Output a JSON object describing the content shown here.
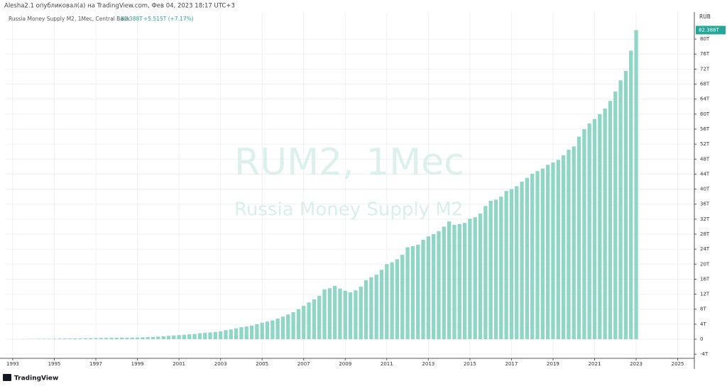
{
  "header": "Alesha2.1 опубликовал(а) на TradingView.com, Фев 04, 2023 18:17 UTC+3",
  "footer": "TradingView",
  "chart_data": {
    "type": "bar",
    "title": "Russia Money Supply M2, 1Мес, Central Bank",
    "last_value_label": "82.388T",
    "change_label": "+5.515T (+7.17%)",
    "watermark": "RUM2, 1Мес",
    "watermark_subtitle": "Russia Money Supply M2",
    "currency": "RUB",
    "color": "#8fd6c7",
    "x": [
      1993,
      1993.25,
      1993.5,
      1993.75,
      1994,
      1994.25,
      1994.5,
      1994.75,
      1995,
      1995.25,
      1995.5,
      1995.75,
      1996,
      1996.25,
      1996.5,
      1996.75,
      1997,
      1997.25,
      1997.5,
      1997.75,
      1998,
      1998.25,
      1998.5,
      1998.75,
      1999,
      1999.25,
      1999.5,
      1999.75,
      2000,
      2000.25,
      2000.5,
      2000.75,
      2001,
      2001.25,
      2001.5,
      2001.75,
      2002,
      2002.25,
      2002.5,
      2002.75,
      2003,
      2003.25,
      2003.5,
      2003.75,
      2004,
      2004.25,
      2004.5,
      2004.75,
      2005,
      2005.25,
      2005.5,
      2005.75,
      2006,
      2006.25,
      2006.5,
      2006.75,
      2007,
      2007.25,
      2007.5,
      2007.75,
      2008,
      2008.25,
      2008.5,
      2008.75,
      2009,
      2009.25,
      2009.5,
      2009.75,
      2010,
      2010.25,
      2010.5,
      2010.75,
      2011,
      2011.25,
      2011.5,
      2011.75,
      2012,
      2012.25,
      2012.5,
      2012.75,
      2013,
      2013.25,
      2013.5,
      2013.75,
      2014,
      2014.25,
      2014.5,
      2014.75,
      2015,
      2015.25,
      2015.5,
      2015.75,
      2016,
      2016.25,
      2016.5,
      2016.75,
      2017,
      2017.25,
      2017.5,
      2017.75,
      2018,
      2018.25,
      2018.5,
      2018.75,
      2019,
      2019.25,
      2019.5,
      2019.75,
      2020,
      2020.25,
      2020.5,
      2020.75,
      2021,
      2021.25,
      2021.5,
      2021.75,
      2022,
      2022.25,
      2022.5,
      2022.75,
      2023
    ],
    "values": [
      0.02,
      0.03,
      0.04,
      0.05,
      0.06,
      0.08,
      0.1,
      0.12,
      0.14,
      0.16,
      0.18,
      0.2,
      0.22,
      0.24,
      0.26,
      0.28,
      0.3,
      0.33,
      0.36,
      0.38,
      0.4,
      0.42,
      0.4,
      0.43,
      0.45,
      0.5,
      0.55,
      0.6,
      0.7,
      0.8,
      0.9,
      1.0,
      1.1,
      1.2,
      1.3,
      1.4,
      1.6,
      1.7,
      1.8,
      1.9,
      2.1,
      2.4,
      2.6,
      2.9,
      3.2,
      3.4,
      3.6,
      4.0,
      4.4,
      4.7,
      5.0,
      5.5,
      6.0,
      6.6,
      7.2,
      8.0,
      8.9,
      9.8,
      10.6,
      11.6,
      13.3,
      13.6,
      14.2,
      13.5,
      12.9,
      12.5,
      13.0,
      14.0,
      15.7,
      16.5,
      17.2,
      18.5,
      20.0,
      20.5,
      21.3,
      22.5,
      24.5,
      24.8,
      25.2,
      26.5,
      27.4,
      28.0,
      28.8,
      30.0,
      31.4,
      30.5,
      30.7,
      31.0,
      32.1,
      32.5,
      33.5,
      35.5,
      36.9,
      37.2,
      38.0,
      39.5,
      40.0,
      40.8,
      42.0,
      43.0,
      44.1,
      44.8,
      45.5,
      46.5,
      47.1,
      47.8,
      49.0,
      50.5,
      51.4,
      54.0,
      56.0,
      57.5,
      58.7,
      60.0,
      61.5,
      63.5,
      66.0,
      69.0,
      71.5,
      76.9,
      82.388
    ],
    "xlim": [
      1992.66,
      2025.8
    ],
    "xticks": [
      1993,
      1995,
      1997,
      1999,
      2001,
      2003,
      2005,
      2007,
      2009,
      2011,
      2013,
      2015,
      2017,
      2019,
      2021,
      2023,
      2025
    ],
    "ylim": [
      -5.1,
      87.2
    ],
    "yticks": [
      {
        "value": -4,
        "label": "-4T"
      },
      0,
      {
        "value": 4,
        "label": "4T"
      },
      {
        "value": 8,
        "label": "8T"
      },
      {
        "value": 12,
        "label": "12T"
      },
      {
        "value": 16,
        "label": "16T"
      },
      {
        "value": 20,
        "label": "20T"
      },
      {
        "value": 24,
        "label": "24T"
      },
      {
        "value": 28,
        "label": "28T"
      },
      {
        "value": 32,
        "label": "32T"
      },
      {
        "value": 36,
        "label": "36T"
      },
      {
        "value": 40,
        "label": "40T"
      },
      {
        "value": 44,
        "label": "44T"
      },
      {
        "value": 48,
        "label": "48T"
      },
      {
        "value": 52,
        "label": "52T"
      },
      {
        "value": 56,
        "label": "56T"
      },
      {
        "value": 60,
        "label": "60T"
      },
      {
        "value": 64,
        "label": "64T"
      },
      {
        "value": 68,
        "label": "68T"
      },
      {
        "value": 72,
        "label": "72T"
      },
      {
        "value": 76,
        "label": "76T"
      },
      {
        "value": 80,
        "label": "80T"
      }
    ],
    "grid": true
  }
}
